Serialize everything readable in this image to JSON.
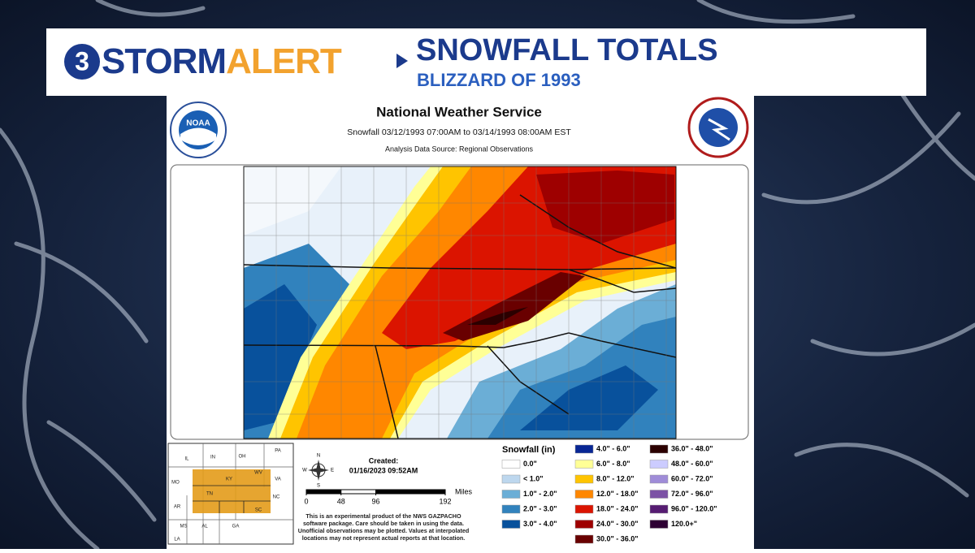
{
  "header": {
    "logo_number": "3",
    "logo_storm": "STORM",
    "logo_alert": "ALERT",
    "title": "SNOWFALL TOTALS",
    "subtitle": "BLIZZARD OF 1993"
  },
  "map_panel": {
    "noaa_logo": "NOAA",
    "title": "National Weather Service",
    "period": "Snowfall 03/12/1993 07:00AM to 03/14/1993 08:00AM EST",
    "source": "Analysis Data Source: Regional Observations"
  },
  "inset": {
    "states": [
      "IL",
      "IN",
      "OH",
      "PA",
      "MO",
      "KY",
      "WV",
      "VA",
      "TN",
      "NC",
      "AR",
      "MS",
      "AL",
      "GA",
      "SC",
      "LA"
    ]
  },
  "created": {
    "label": "Created:",
    "timestamp": "01/16/2023 09:52AM"
  },
  "compass": {
    "north": "N",
    "south": "S",
    "west": "W",
    "east": "E"
  },
  "scale": {
    "unit": "Miles",
    "ticks": [
      0,
      48,
      96,
      192
    ]
  },
  "disclaimer": [
    "This is an experimental product of the NWS GAZPACHO",
    "software package. Care should be taken in using the data.",
    "Unofficial observations may be plotted. Values at interpolated",
    "locations may not represent actual reports at that location."
  ],
  "legend": {
    "title": "Snowfall (in)",
    "items": [
      {
        "label": "0.0\"",
        "color": "#ffffff"
      },
      {
        "label": "< 1.0\"",
        "color": "#bdd7ee"
      },
      {
        "label": "1.0\" - 2.0\"",
        "color": "#6baed6"
      },
      {
        "label": "2.0\" - 3.0\"",
        "color": "#3182bd"
      },
      {
        "label": "3.0\" - 4.0\"",
        "color": "#08519c"
      },
      {
        "label": "4.0\" - 6.0\"",
        "color": "#082694"
      },
      {
        "label": "6.0\" - 8.0\"",
        "color": "#ffff96"
      },
      {
        "label": "8.0\" - 12.0\"",
        "color": "#ffc400"
      },
      {
        "label": "12.0\" - 18.0\"",
        "color": "#ff8700"
      },
      {
        "label": "18.0\" - 24.0\"",
        "color": "#db1400"
      },
      {
        "label": "24.0\" - 30.0\"",
        "color": "#9e0000"
      },
      {
        "label": "30.0\" - 36.0\"",
        "color": "#690000"
      },
      {
        "label": "36.0\" - 48.0\"",
        "color": "#2b0000"
      },
      {
        "label": "48.0\" - 60.0\"",
        "color": "#ccccff"
      },
      {
        "label": "60.0\" - 72.0\"",
        "color": "#9f8cd8"
      },
      {
        "label": "72.0\" - 96.0\"",
        "color": "#7c52a5"
      },
      {
        "label": "96.0\" - 120.0\"",
        "color": "#561c72"
      },
      {
        "label": "120.0+\"",
        "color": "#2e0033"
      }
    ]
  }
}
